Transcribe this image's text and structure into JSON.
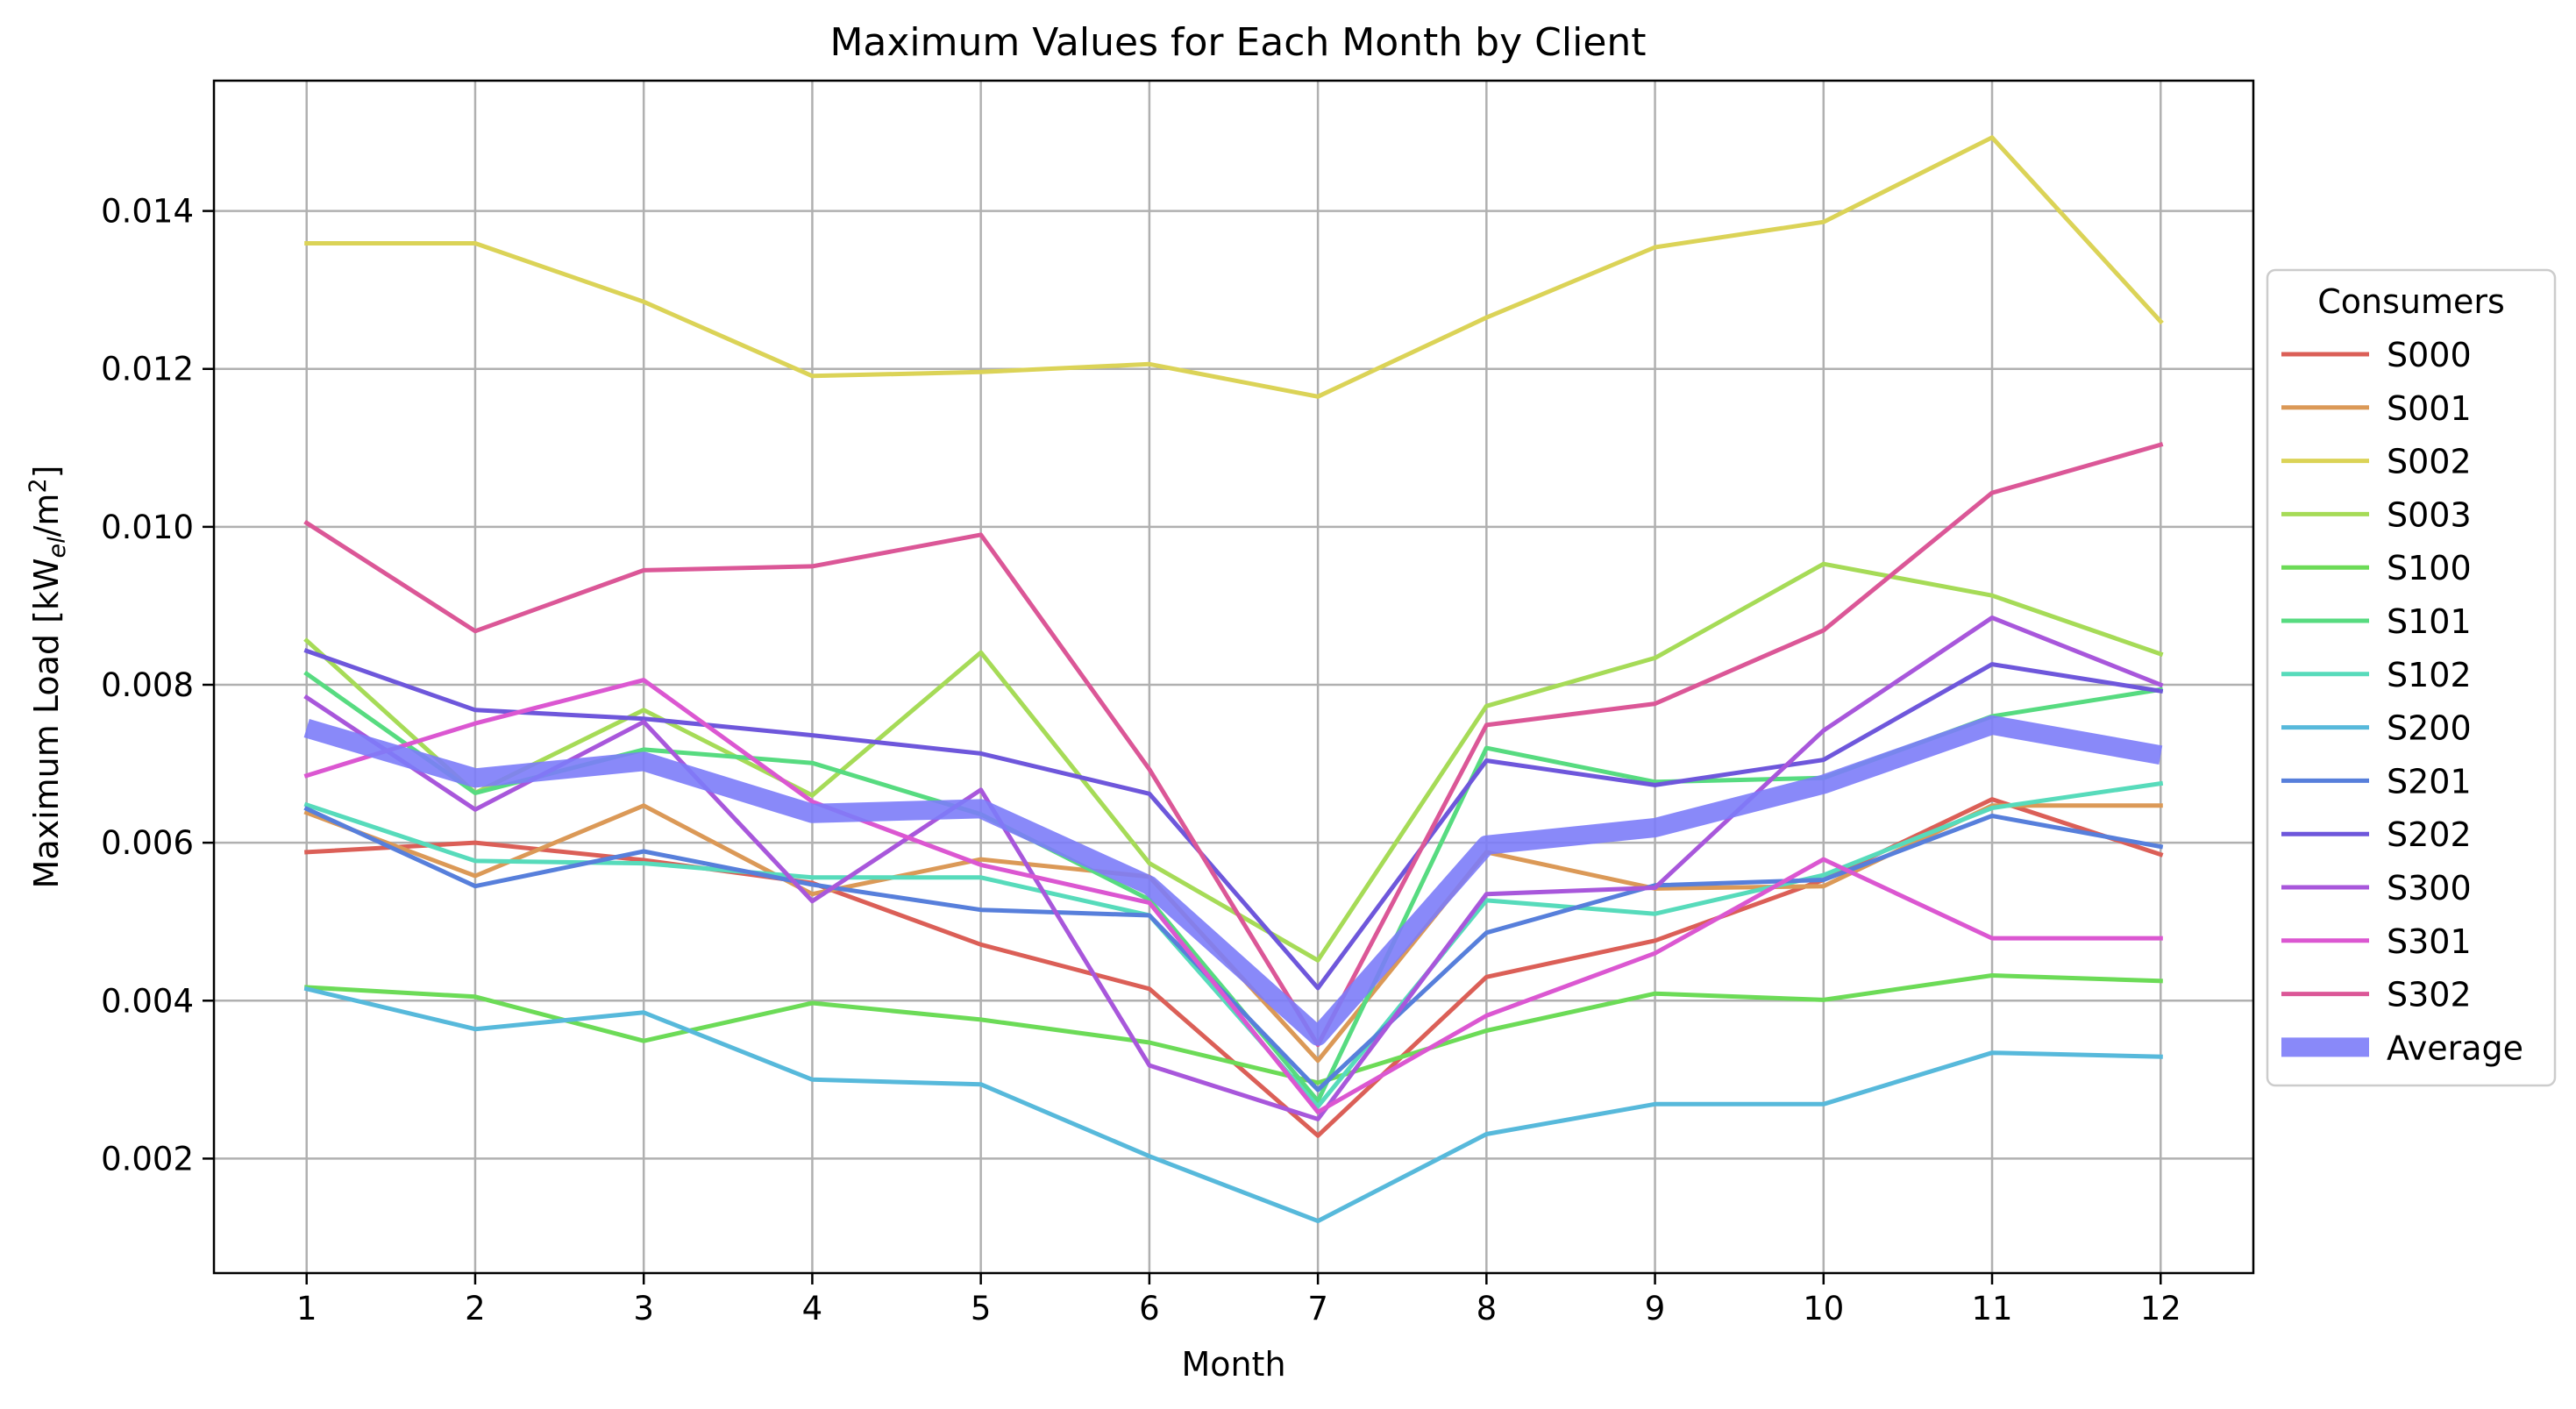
{
  "chart_data": {
    "type": "line",
    "title": "Maximum Values for Each Month by Client",
    "xlabel": "Month",
    "ylabel_text": "Maximum Load [kW",
    "ylabel_sub": "el",
    "ylabel_mid": "/m",
    "ylabel_sup": "2",
    "ylabel_end": "]",
    "x": [
      1,
      2,
      3,
      4,
      5,
      6,
      7,
      8,
      9,
      10,
      11,
      12
    ],
    "x_ticks": [
      "1",
      "2",
      "3",
      "4",
      "5",
      "6",
      "7",
      "8",
      "9",
      "10",
      "11",
      "12"
    ],
    "xlim": [
      0.45,
      12.55
    ],
    "ylim": [
      0.00055,
      0.01565
    ],
    "y_ticks": [
      "0.002",
      "0.004",
      "0.006",
      "0.008",
      "0.010",
      "0.012",
      "0.014"
    ],
    "y_tick_values": [
      0.002,
      0.004,
      0.006,
      0.008,
      0.01,
      0.012,
      0.014
    ],
    "grid": true,
    "legend": {
      "title": "Consumers",
      "placement": "right-outside"
    },
    "series": [
      {
        "name": "S000",
        "color": "#db5f57",
        "values": [
          0.00588,
          0.006,
          0.00578,
          0.00549,
          0.00471,
          0.00415,
          0.00229,
          0.0043,
          0.00476,
          0.00553,
          0.00655,
          0.00585
        ]
      },
      {
        "name": "S001",
        "color": "#db9957",
        "values": [
          0.00638,
          0.00558,
          0.00647,
          0.00535,
          0.00579,
          0.00557,
          0.00324,
          0.00588,
          0.00542,
          0.00545,
          0.00647,
          0.00647
        ]
      },
      {
        "name": "S002",
        "color": "#dbd357",
        "values": [
          0.01359,
          0.01359,
          0.01285,
          0.01191,
          0.01196,
          0.01206,
          0.01165,
          0.01265,
          0.01354,
          0.01386,
          0.01493,
          0.0126
        ]
      },
      {
        "name": "S003",
        "color": "#a6db57",
        "values": [
          0.00856,
          0.00663,
          0.00768,
          0.0066,
          0.00841,
          0.00574,
          0.00451,
          0.00773,
          0.00834,
          0.00953,
          0.00913,
          0.00839
        ]
      },
      {
        "name": "S100",
        "color": "#6cdb57",
        "values": [
          0.00417,
          0.00405,
          0.00349,
          0.00397,
          0.00376,
          0.00347,
          0.00296,
          0.00362,
          0.00409,
          0.00401,
          0.00432,
          0.00425
        ]
      },
      {
        "name": "S101",
        "color": "#57db80",
        "values": [
          0.00814,
          0.00663,
          0.00718,
          0.00701,
          0.00636,
          0.00528,
          0.00273,
          0.0072,
          0.00677,
          0.00682,
          0.0076,
          0.00794
        ]
      },
      {
        "name": "S102",
        "color": "#57dbbb",
        "values": [
          0.00648,
          0.00577,
          0.00574,
          0.00556,
          0.00556,
          0.00508,
          0.00266,
          0.00527,
          0.0051,
          0.00559,
          0.00644,
          0.00675
        ]
      },
      {
        "name": "S200",
        "color": "#57b9db",
        "values": [
          0.00415,
          0.00364,
          0.00385,
          0.003,
          0.00294,
          0.00203,
          0.00121,
          0.00231,
          0.00269,
          0.00269,
          0.00334,
          0.00329
        ]
      },
      {
        "name": "S201",
        "color": "#577fdb",
        "values": [
          0.00643,
          0.00545,
          0.00589,
          0.00547,
          0.00515,
          0.00508,
          0.00287,
          0.00486,
          0.00546,
          0.00553,
          0.00634,
          0.00595
        ]
      },
      {
        "name": "S202",
        "color": "#6e57db",
        "values": [
          0.00843,
          0.00768,
          0.00757,
          0.00736,
          0.00713,
          0.00662,
          0.00416,
          0.00704,
          0.00673,
          0.00705,
          0.00826,
          0.00792
        ]
      },
      {
        "name": "S300",
        "color": "#a857db",
        "values": [
          0.00784,
          0.00642,
          0.00753,
          0.00526,
          0.00667,
          0.00318,
          0.0025,
          0.00535,
          0.00543,
          0.00742,
          0.00885,
          0.008
        ]
      },
      {
        "name": "S301",
        "color": "#db57d1",
        "values": [
          0.00685,
          0.00751,
          0.00806,
          0.00652,
          0.00572,
          0.00524,
          0.00259,
          0.00381,
          0.0046,
          0.00579,
          0.00479,
          0.00479
        ]
      },
      {
        "name": "S302",
        "color": "#db5797",
        "values": [
          0.01005,
          0.00868,
          0.00945,
          0.0095,
          0.0099,
          0.00693,
          0.00344,
          0.00749,
          0.00776,
          0.00869,
          0.01043,
          0.01104
        ]
      },
      {
        "name": "Average",
        "color": "#7c7cf8",
        "values": [
          0.00745,
          0.00682,
          0.00703,
          0.00637,
          0.00643,
          0.00546,
          0.00355,
          0.00597,
          0.00619,
          0.00674,
          0.00749,
          0.00711
        ]
      }
    ]
  }
}
